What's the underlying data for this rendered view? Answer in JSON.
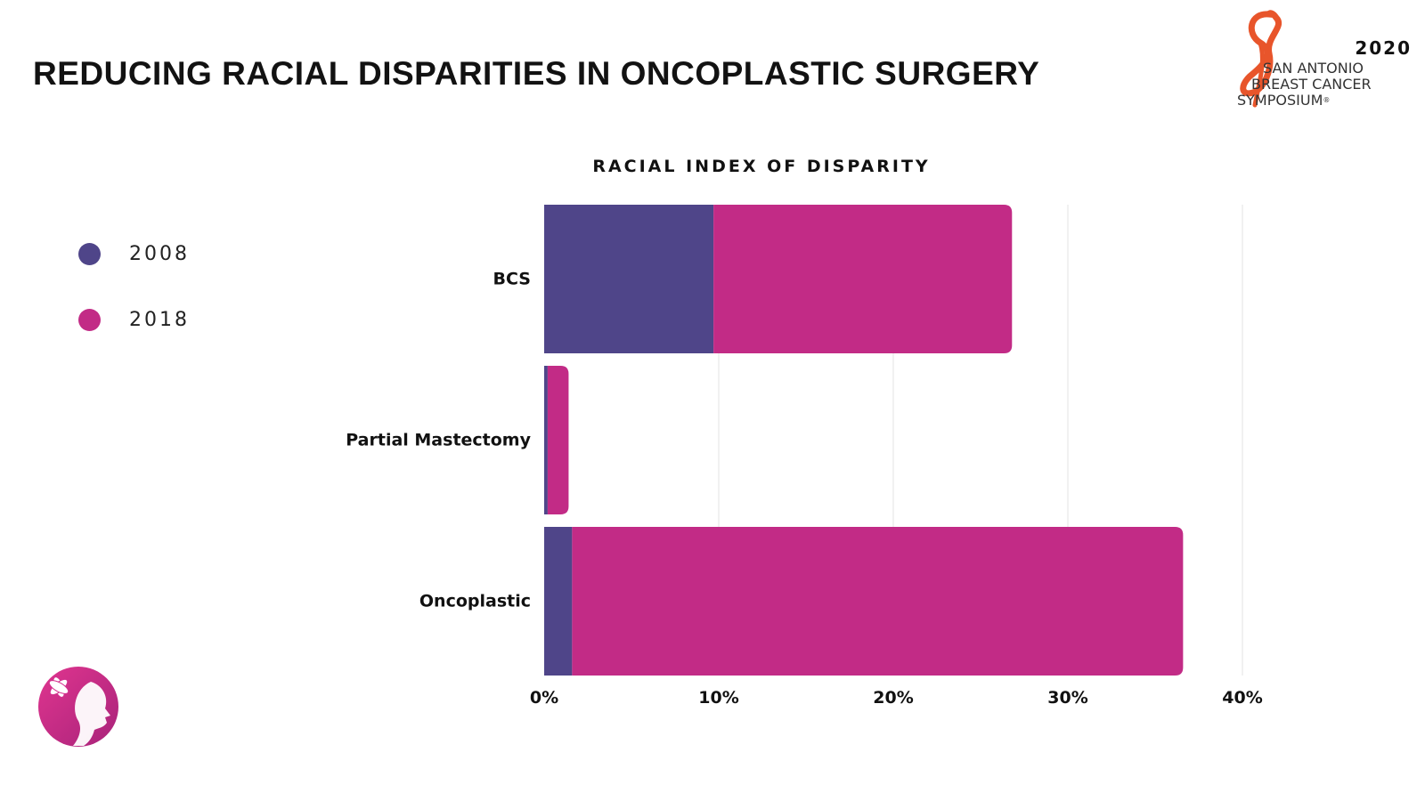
{
  "header": {
    "title": "REDUCING RACIAL DISPARITIES IN ONCOPLASTIC SURGERY"
  },
  "brand": {
    "year": "2020",
    "line1": "SAN ANTONIO",
    "line2": "BREAST CANCER",
    "line3": "SYMPOSIUM",
    "registered": "®",
    "ribbon_color": "#e8552b"
  },
  "legend": {
    "items": [
      {
        "label": "2008",
        "color": "#4f4589"
      },
      {
        "label": "2018",
        "color": "#c22b86"
      }
    ]
  },
  "logo": {
    "icon": "woman-profile-flower-icon",
    "color": "#d4308e"
  },
  "chart_data": {
    "type": "bar",
    "orientation": "horizontal",
    "stacked": true,
    "title": "RACIAL INDEX OF DISPARITY",
    "categories": [
      "BCS",
      "Partial Mastectomy",
      "Oncoplastic"
    ],
    "series": [
      {
        "name": "2008",
        "color": "#4f4589",
        "values": [
          9.7,
          0.2,
          1.6
        ]
      },
      {
        "name": "2018",
        "color": "#c22b86",
        "values": [
          17.1,
          1.2,
          35.0
        ]
      }
    ],
    "xlim": [
      0,
      40
    ],
    "xticks": [
      "0%",
      "10%",
      "20%",
      "30%",
      "40%"
    ],
    "xtick_values": [
      0,
      10,
      20,
      30,
      40
    ],
    "grid": true,
    "xlabel": "",
    "ylabel": "",
    "legend_position": "left"
  }
}
